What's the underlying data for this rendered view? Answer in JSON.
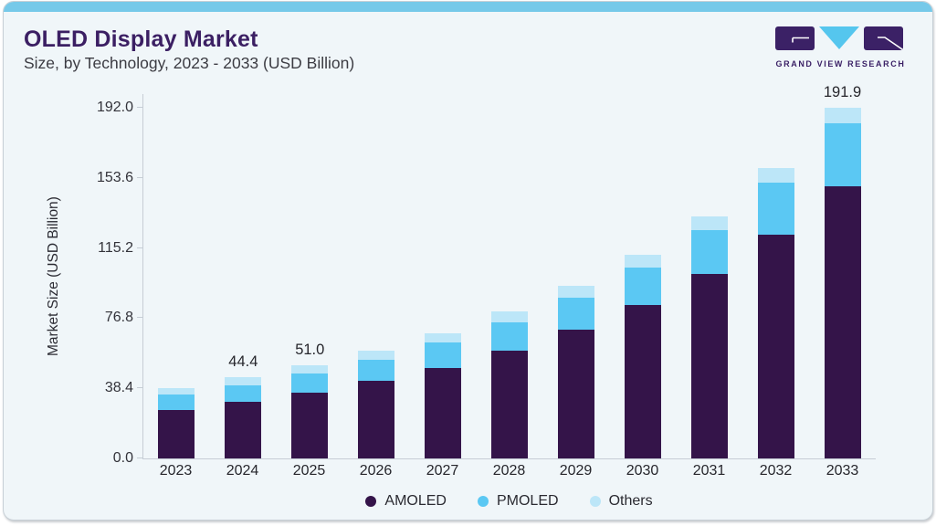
{
  "page": {
    "title": "OLED Display Market",
    "subtitle": "Size, by Technology, 2023 - 2033 (USD Billion)",
    "brand": {
      "name": "GRAND VIEW RESEARCH",
      "purple": "#3b2166",
      "blue": "#55c6ee"
    }
  },
  "chart_data": {
    "type": "bar",
    "stacked": true,
    "title": "OLED Display Market Size, by Technology, 2023 - 2033 (USD Billion)",
    "xlabel": "",
    "ylabel": "Market Size (USD Billion)",
    "categories": [
      "2023",
      "2024",
      "2025",
      "2026",
      "2027",
      "2028",
      "2029",
      "2030",
      "2031",
      "2032",
      "2033"
    ],
    "series": [
      {
        "name": "AMOLED",
        "color": "#341449",
        "values": [
          26.6,
          31.1,
          35.8,
          42.4,
          49.7,
          59.0,
          70.5,
          84.2,
          101.0,
          122.7,
          148.9
        ]
      },
      {
        "name": "PMOLED",
        "color": "#5bc8f3",
        "values": [
          8.2,
          9.0,
          10.5,
          11.8,
          13.6,
          15.6,
          17.5,
          20.2,
          24.0,
          28.5,
          34.5
        ]
      },
      {
        "name": "Others",
        "color": "#bce6f8",
        "values": [
          3.8,
          4.3,
          4.7,
          5.0,
          5.2,
          5.8,
          6.4,
          6.9,
          7.5,
          8.0,
          8.5
        ]
      }
    ],
    "totals": [
      38.6,
      44.4,
      51.0,
      59.2,
      68.5,
      80.4,
      94.4,
      111.3,
      132.5,
      159.2,
      191.9
    ],
    "bar_labels": {
      "2024": "44.4",
      "2025": "51.0",
      "2033": "191.9"
    },
    "yticks": [
      0.0,
      38.4,
      76.8,
      115.2,
      153.6,
      192.0
    ],
    "ytick_labels": [
      "0.0",
      "38.4",
      "76.8",
      "115.2",
      "153.6",
      "192.0"
    ],
    "ylim": [
      0,
      200
    ],
    "grid": false,
    "legend_position": "bottom",
    "axis_color": "#c6cdd5"
  }
}
